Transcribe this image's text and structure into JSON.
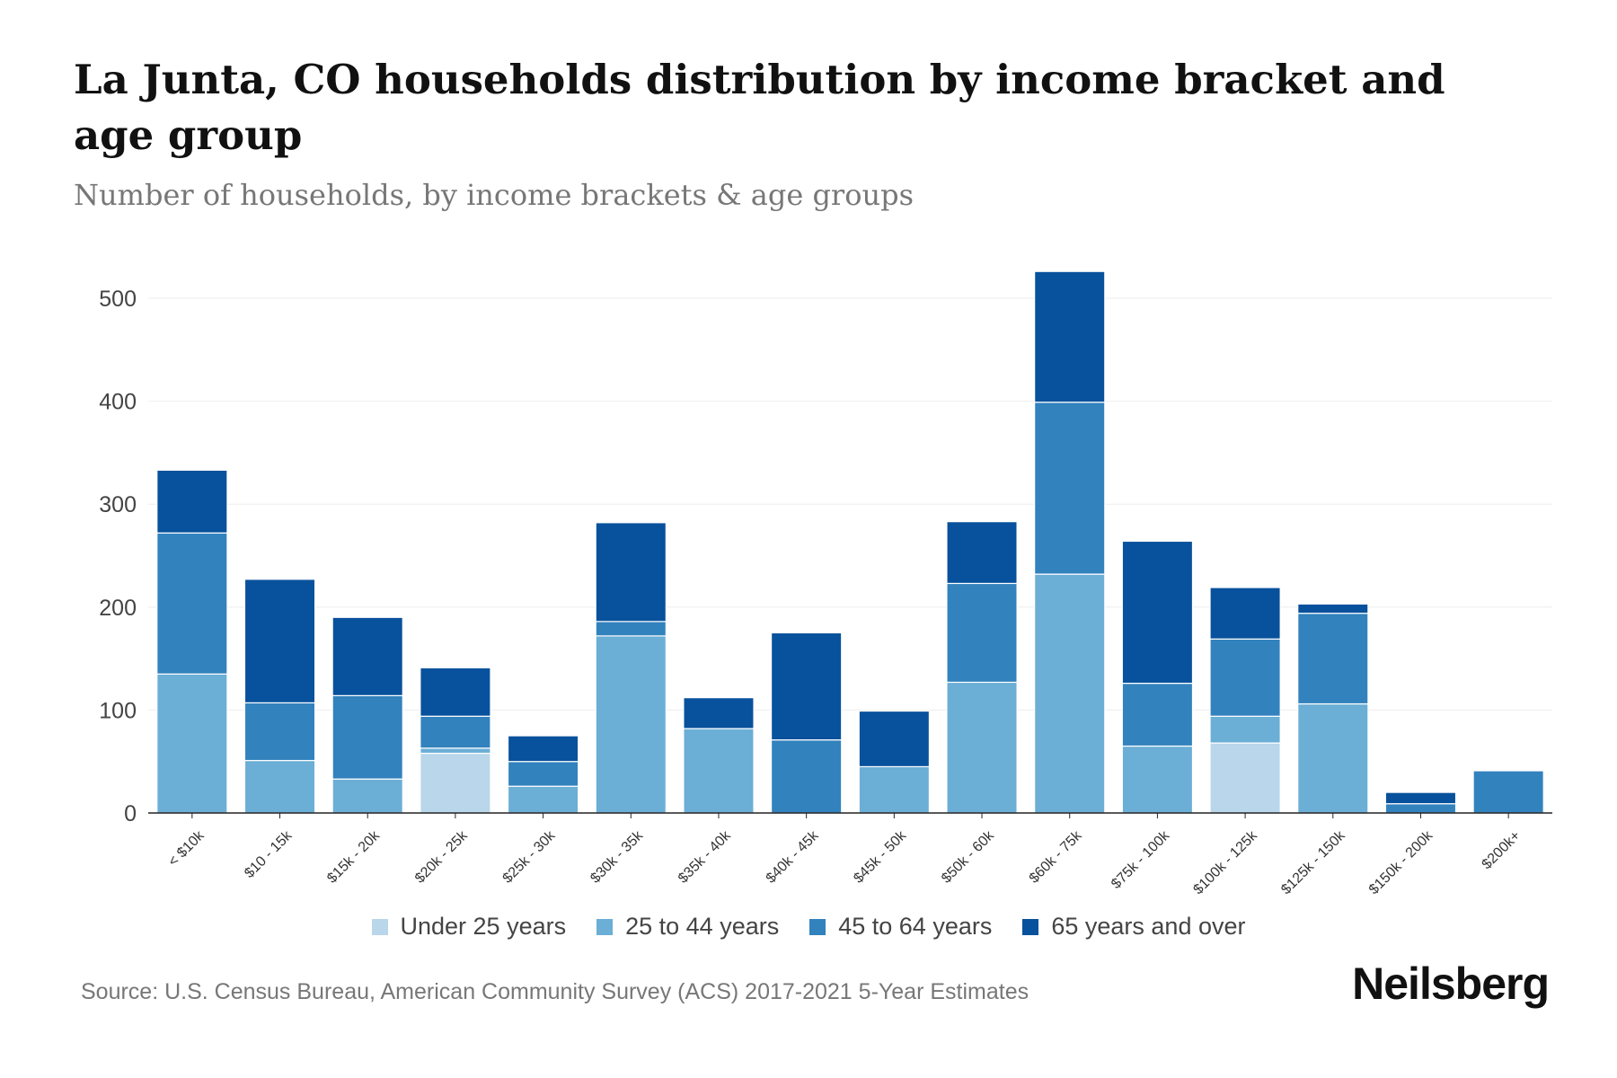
{
  "title": "La Junta, CO households distribution by income bracket and age group",
  "subtitle": "Number of households, by income brackets & age groups",
  "source": "Source: U.S. Census Bureau, American Community Survey (ACS) 2017-2021 5-Year Estimates",
  "logo": "Neilsberg",
  "chart_data": {
    "type": "bar",
    "stacked": true,
    "title": "La Junta, CO households distribution by income bracket and age group",
    "xlabel": "",
    "ylabel": "",
    "ylim": [
      0,
      550
    ],
    "yticks": [
      0,
      100,
      200,
      300,
      400,
      500
    ],
    "grid": true,
    "legend_position": "bottom",
    "categories": [
      "< $10k",
      "$10 - 15k",
      "$15k - 20k",
      "$20k - 25k",
      "$25k - 30k",
      "$30k - 35k",
      "$35k - 40k",
      "$40k - 45k",
      "$45k - 50k",
      "$50k - 60k",
      "$60k - 75k",
      "$75k - 100k",
      "$100k - 125k",
      "$125k - 150k",
      "$150k - 200k",
      "$200k+"
    ],
    "series": [
      {
        "name": "Under 25 years",
        "color": "#b9d6ea",
        "values": [
          0,
          0,
          0,
          58,
          0,
          0,
          0,
          0,
          0,
          0,
          0,
          0,
          68,
          0,
          0,
          0
        ]
      },
      {
        "name": "25 to 44 years",
        "color": "#6baed6",
        "values": [
          135,
          51,
          33,
          5,
          26,
          172,
          82,
          0,
          45,
          127,
          232,
          65,
          26,
          106,
          0,
          0
        ]
      },
      {
        "name": "45 to 64 years",
        "color": "#3282bd",
        "values": [
          137,
          56,
          81,
          31,
          24,
          14,
          0,
          71,
          0,
          96,
          167,
          61,
          75,
          88,
          9,
          41
        ]
      },
      {
        "name": "65 years and over",
        "color": "#08519c",
        "values": [
          61,
          120,
          76,
          47,
          25,
          96,
          30,
          104,
          54,
          60,
          127,
          138,
          50,
          9,
          11,
          0
        ]
      }
    ]
  }
}
